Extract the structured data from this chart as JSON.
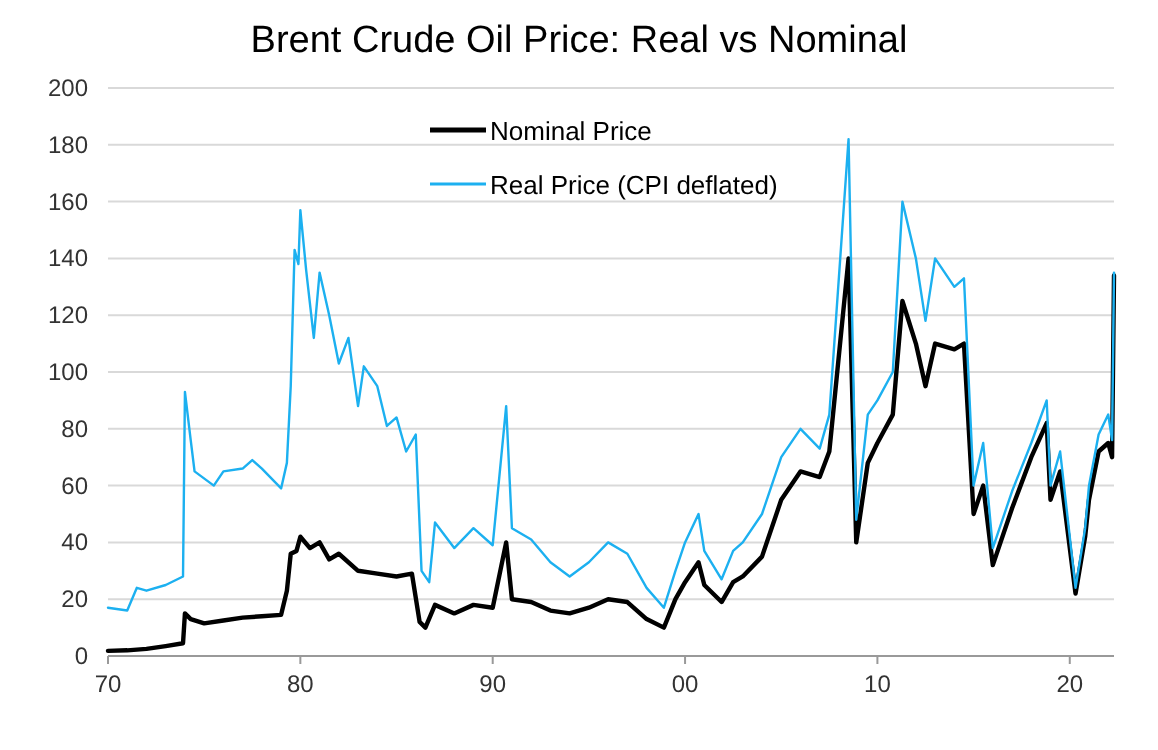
{
  "chart_data": {
    "type": "line",
    "title": "Brent Crude Oil Price: Real vs Nominal",
    "xlim": [
      1970,
      2022.3
    ],
    "xticks": [
      {
        "value": 1970,
        "label": "70"
      },
      {
        "value": 1980,
        "label": "80"
      },
      {
        "value": 1990,
        "label": "90"
      },
      {
        "value": 2000,
        "label": "00"
      },
      {
        "value": 2010,
        "label": "10"
      },
      {
        "value": 2020,
        "label": "20"
      }
    ],
    "ylim": [
      0,
      200
    ],
    "yticks": [
      0,
      20,
      40,
      60,
      80,
      100,
      120,
      140,
      160,
      180,
      200
    ],
    "grid": "y",
    "legend": "top",
    "line_style": "solid",
    "series": [
      {
        "name": "Nominal Price",
        "color": "#000000",
        "x": [
          1970,
          1971,
          1972,
          1973,
          1973.9,
          1974,
          1974.3,
          1975,
          1976,
          1977,
          1978,
          1979,
          1979.3,
          1979.5,
          1979.8,
          1980,
          1980.5,
          1981,
          1981.5,
          1982,
          1983,
          1984,
          1985,
          1985.8,
          1986.2,
          1986.5,
          1987,
          1988,
          1989,
          1990,
          1990.7,
          1991,
          1992,
          1993,
          1994,
          1995,
          1996,
          1997,
          1998,
          1998.9,
          1999.5,
          2000,
          2000.7,
          2001,
          2001.9,
          2002.5,
          2003,
          2004,
          2005,
          2006,
          2007,
          2007.5,
          2008.5,
          2008.9,
          2009.5,
          2010,
          2010.8,
          2011.3,
          2012,
          2012.5,
          2013,
          2014,
          2014.5,
          2015,
          2015.5,
          2016,
          2017,
          2018,
          2018.8,
          2019,
          2019.5,
          2020.3,
          2020.8,
          2021,
          2021.5,
          2022,
          2022.2,
          2022.3
        ],
        "values": [
          1.8,
          2,
          2.5,
          3.5,
          4.5,
          15,
          13,
          11.5,
          12.5,
          13.5,
          14,
          14.5,
          23,
          36,
          37,
          42,
          38,
          40,
          34,
          36,
          30,
          29,
          28,
          29,
          12,
          10,
          18,
          15,
          18,
          17,
          40,
          20,
          19,
          16,
          15,
          17,
          20,
          19,
          13,
          10,
          20,
          26,
          33,
          25,
          19,
          26,
          28,
          35,
          55,
          65,
          63,
          72,
          140,
          40,
          68,
          75,
          85,
          125,
          110,
          95,
          110,
          108,
          110,
          50,
          60,
          32,
          52,
          70,
          82,
          55,
          65,
          22,
          42,
          55,
          72,
          75,
          70,
          134
        ]
      },
      {
        "name": "Real Price (CPI deflated)",
        "color": "#1cb0f0",
        "x": [
          1970,
          1971,
          1971.5,
          1972,
          1973,
          1973.9,
          1974,
          1974.3,
          1974.5,
          1975.5,
          1976,
          1977,
          1977.5,
          1978,
          1979,
          1979.3,
          1979.5,
          1979.7,
          1979.9,
          1980,
          1980.3,
          1980.7,
          1981,
          1981.5,
          1982,
          1982.5,
          1983,
          1983.3,
          1984,
          1984.5,
          1985,
          1985.5,
          1986,
          1986.3,
          1986.7,
          1987,
          1988,
          1989,
          1990,
          1990.7,
          1991,
          1992,
          1993,
          1994,
          1995,
          1996,
          1997,
          1998,
          1998.9,
          1999.5,
          2000,
          2000.7,
          2001,
          2001.9,
          2002.5,
          2003,
          2004,
          2005,
          2006,
          2007,
          2007.5,
          2008.5,
          2008.9,
          2009.5,
          2010,
          2010.8,
          2011.3,
          2012,
          2012.5,
          2013,
          2014,
          2014.5,
          2015,
          2015.5,
          2016,
          2017,
          2018,
          2018.8,
          2019,
          2019.5,
          2020.3,
          2020.8,
          2021,
          2021.5,
          2022,
          2022.2,
          2022.3
        ],
        "values": [
          17,
          16,
          24,
          23,
          25,
          28,
          93,
          76,
          65,
          60,
          65,
          66,
          69,
          66,
          59,
          68,
          95,
          143,
          138,
          157,
          136,
          112,
          135,
          120,
          103,
          112,
          88,
          102,
          95,
          81,
          84,
          72,
          78,
          30,
          26,
          47,
          38,
          45,
          39,
          88,
          45,
          41,
          33,
          28,
          33,
          40,
          36,
          24,
          17,
          30,
          40,
          50,
          37,
          27,
          37,
          40,
          50,
          70,
          80,
          73,
          85,
          182,
          48,
          85,
          90,
          100,
          160,
          140,
          118,
          140,
          130,
          133,
          60,
          75,
          38,
          58,
          75,
          90,
          60,
          72,
          24,
          45,
          60,
          78,
          85,
          76,
          135
        ]
      }
    ]
  }
}
